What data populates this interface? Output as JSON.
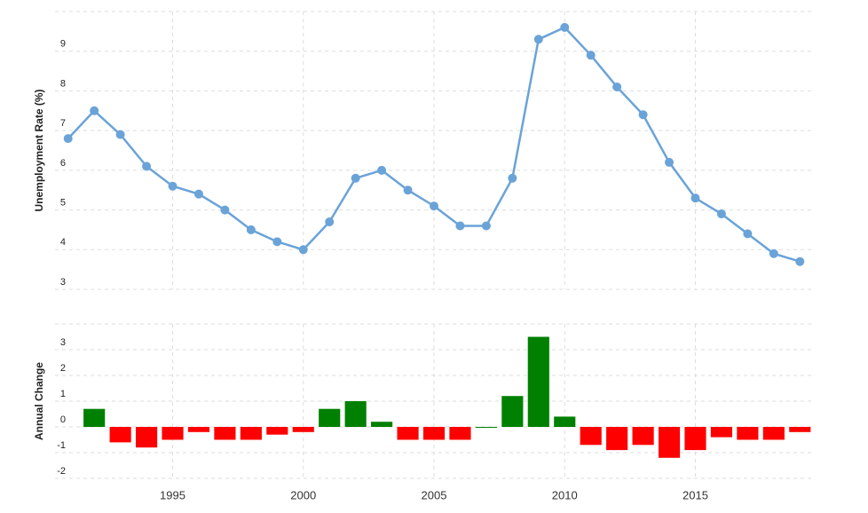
{
  "chart_data": [
    {
      "type": "line",
      "ylabel": "Unemployment Rate (%)",
      "x": [
        1991,
        1992,
        1993,
        1994,
        1995,
        1996,
        1997,
        1998,
        1999,
        2000,
        2001,
        2002,
        2003,
        2004,
        2005,
        2006,
        2007,
        2008,
        2009,
        2010,
        2011,
        2012,
        2013,
        2014,
        2015,
        2016,
        2017,
        2018,
        2019
      ],
      "series": [
        {
          "name": "Unemployment Rate",
          "color": "#6aa3d8",
          "values": [
            6.8,
            7.5,
            6.9,
            6.1,
            5.6,
            5.4,
            5.0,
            4.5,
            4.2,
            4.0,
            4.7,
            5.8,
            6.0,
            5.5,
            5.1,
            4.6,
            4.6,
            5.8,
            9.3,
            9.6,
            8.9,
            8.1,
            7.4,
            6.2,
            5.3,
            4.9,
            4.4,
            3.9,
            3.7
          ]
        }
      ],
      "xlim": [
        1990.5,
        2019.5
      ],
      "xticks": [
        1995,
        2000,
        2005,
        2010,
        2015
      ],
      "ylim": [
        3,
        10
      ],
      "yticks": [
        3,
        4,
        5,
        6,
        7,
        8,
        9
      ],
      "grid": true
    },
    {
      "type": "bar",
      "ylabel": "Annual Change",
      "x": [
        1991,
        1992,
        1993,
        1994,
        1995,
        1996,
        1997,
        1998,
        1999,
        2000,
        2001,
        2002,
        2003,
        2004,
        2005,
        2006,
        2007,
        2008,
        2009,
        2010,
        2011,
        2012,
        2013,
        2014,
        2015,
        2016,
        2017,
        2018,
        2019
      ],
      "values": [
        null,
        0.7,
        -0.6,
        -0.8,
        -0.5,
        -0.2,
        -0.5,
        -0.5,
        -0.3,
        -0.2,
        0.7,
        1.0,
        0.2,
        -0.5,
        -0.5,
        -0.5,
        0.0,
        1.2,
        3.5,
        0.4,
        -0.7,
        -0.9,
        -0.7,
        -1.2,
        -0.9,
        -0.4,
        -0.5,
        -0.5,
        -0.2
      ],
      "positive_color": "#008000",
      "negative_color": "#ff0000",
      "xlim": [
        1990.5,
        2019.5
      ],
      "xticks": [
        1995,
        2000,
        2005,
        2010,
        2015
      ],
      "ylim": [
        -2,
        4
      ],
      "yticks": [
        -2,
        -1,
        0,
        1,
        2,
        3
      ],
      "grid": true
    }
  ]
}
